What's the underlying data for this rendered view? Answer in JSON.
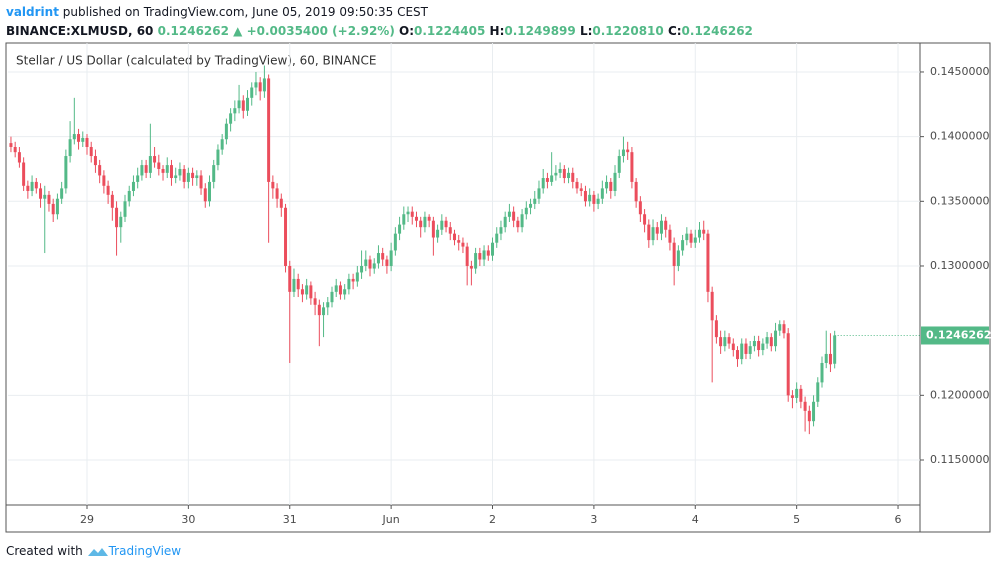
{
  "header": {
    "author": "valdrint",
    "published": "published on TradingView.com, June 05, 2019 09:50:35 CEST",
    "symbol": "BINANCE:XLMUSD, 60",
    "price": "0.1246262",
    "change": "▲ +0.0035400 (+2.92%)",
    "o_label": "O:",
    "o": "0.1224405",
    "h_label": "H:",
    "h": "0.1249899",
    "l_label": "L:",
    "l": "0.1220810",
    "c_label": "C:",
    "c": "0.1246262"
  },
  "chart_data": {
    "type": "candlestick",
    "title": "Stellar / US Dollar (calculated by TradingView), 60, BINANCE",
    "up_color": "#53b987",
    "down_color": "#eb4d5c",
    "grid": true,
    "ylim": [
      0.11152,
      0.14724
    ],
    "yticks": [
      {
        "value": 0.115,
        "label": "0.1150000"
      },
      {
        "value": 0.12,
        "label": "0.1200000"
      },
      {
        "value": 0.13,
        "label": "0.1300000"
      },
      {
        "value": 0.135,
        "label": "0.1350000"
      },
      {
        "value": 0.14,
        "label": "0.1400000"
      },
      {
        "value": 0.145,
        "label": "0.1450000"
      }
    ],
    "xlim": [
      -0.7,
      215.2
    ],
    "xticks": [
      {
        "value": 18,
        "label": "29"
      },
      {
        "value": 42,
        "label": "30"
      },
      {
        "value": 66,
        "label": "31"
      },
      {
        "value": 90,
        "label": "Jun"
      },
      {
        "value": 114,
        "label": "2"
      },
      {
        "value": 138,
        "label": "3"
      },
      {
        "value": 162,
        "label": "4"
      },
      {
        "value": 186,
        "label": "5"
      },
      {
        "value": 210,
        "label": "6"
      }
    ],
    "last_price_label": "0.1246262",
    "ohlc": [
      [
        0.1395,
        0.14,
        0.1388,
        0.1392
      ],
      [
        0.1392,
        0.1396,
        0.1384,
        0.1388
      ],
      [
        0.1388,
        0.1392,
        0.1376,
        0.138
      ],
      [
        0.138,
        0.1384,
        0.1358,
        0.1362
      ],
      [
        0.1362,
        0.1366,
        0.1352,
        0.1358
      ],
      [
        0.1358,
        0.137,
        0.1354,
        0.1365
      ],
      [
        0.1365,
        0.1368,
        0.1356,
        0.136
      ],
      [
        0.136,
        0.1364,
        0.1345,
        0.1352
      ],
      [
        0.1352,
        0.1362,
        0.131,
        0.1355
      ],
      [
        0.1355,
        0.1358,
        0.1342,
        0.1348
      ],
      [
        0.1348,
        0.1352,
        0.1334,
        0.134
      ],
      [
        0.134,
        0.1356,
        0.1336,
        0.1352
      ],
      [
        0.1352,
        0.1365,
        0.1348,
        0.136
      ],
      [
        0.136,
        0.139,
        0.1356,
        0.1385
      ],
      [
        0.1385,
        0.1412,
        0.138,
        0.1398
      ],
      [
        0.1398,
        0.143,
        0.1394,
        0.1402
      ],
      [
        0.1402,
        0.1406,
        0.139,
        0.1396
      ],
      [
        0.1396,
        0.1404,
        0.1392,
        0.1399
      ],
      [
        0.1399,
        0.1402,
        0.1386,
        0.1392
      ],
      [
        0.1392,
        0.1396,
        0.138,
        0.1385
      ],
      [
        0.1385,
        0.139,
        0.1372,
        0.1378
      ],
      [
        0.1378,
        0.1382,
        0.1364,
        0.137
      ],
      [
        0.137,
        0.1374,
        0.1356,
        0.1362
      ],
      [
        0.1362,
        0.1366,
        0.1348,
        0.1355
      ],
      [
        0.1355,
        0.1358,
        0.1335,
        0.1345
      ],
      [
        0.1345,
        0.135,
        0.1308,
        0.133
      ],
      [
        0.133,
        0.1342,
        0.1318,
        0.1338
      ],
      [
        0.1338,
        0.1355,
        0.1334,
        0.135
      ],
      [
        0.135,
        0.1362,
        0.1346,
        0.1358
      ],
      [
        0.1358,
        0.137,
        0.1354,
        0.1365
      ],
      [
        0.1365,
        0.1376,
        0.136,
        0.137
      ],
      [
        0.137,
        0.1382,
        0.1366,
        0.1378
      ],
      [
        0.1378,
        0.1382,
        0.1368,
        0.1372
      ],
      [
        0.1372,
        0.141,
        0.1368,
        0.1385
      ],
      [
        0.1385,
        0.1392,
        0.1376,
        0.138
      ],
      [
        0.138,
        0.1386,
        0.137,
        0.1375
      ],
      [
        0.1375,
        0.1378,
        0.1366,
        0.1372
      ],
      [
        0.1372,
        0.1384,
        0.1368,
        0.1378
      ],
      [
        0.1378,
        0.1382,
        0.1362,
        0.1368
      ],
      [
        0.1368,
        0.1376,
        0.1364,
        0.137
      ],
      [
        0.137,
        0.138,
        0.1366,
        0.1375
      ],
      [
        0.1375,
        0.1378,
        0.136,
        0.1365
      ],
      [
        0.1365,
        0.1376,
        0.136,
        0.1372
      ],
      [
        0.1372,
        0.1376,
        0.1362,
        0.1368
      ],
      [
        0.1368,
        0.1374,
        0.1362,
        0.137
      ],
      [
        0.137,
        0.1374,
        0.1355,
        0.136
      ],
      [
        0.136,
        0.1364,
        0.1345,
        0.135
      ],
      [
        0.135,
        0.137,
        0.1346,
        0.1365
      ],
      [
        0.1365,
        0.1382,
        0.136,
        0.1378
      ],
      [
        0.1378,
        0.1394,
        0.1374,
        0.139
      ],
      [
        0.139,
        0.1402,
        0.1386,
        0.1398
      ],
      [
        0.1398,
        0.1414,
        0.1394,
        0.141
      ],
      [
        0.141,
        0.1422,
        0.1404,
        0.1418
      ],
      [
        0.1418,
        0.1428,
        0.1412,
        0.1422
      ],
      [
        0.1422,
        0.144,
        0.1418,
        0.1428
      ],
      [
        0.1428,
        0.1432,
        0.1414,
        0.142
      ],
      [
        0.142,
        0.1436,
        0.1416,
        0.143
      ],
      [
        0.143,
        0.1442,
        0.1424,
        0.1438
      ],
      [
        0.1438,
        0.145,
        0.1432,
        0.1442
      ],
      [
        0.1442,
        0.1446,
        0.1428,
        0.1435
      ],
      [
        0.1435,
        0.1455,
        0.143,
        0.1445
      ],
      [
        0.1445,
        0.1448,
        0.1318,
        0.1365
      ],
      [
        0.1365,
        0.137,
        0.1352,
        0.136
      ],
      [
        0.136,
        0.1364,
        0.1345,
        0.1352
      ],
      [
        0.1352,
        0.1356,
        0.1338,
        0.1345
      ],
      [
        0.1345,
        0.1348,
        0.1295,
        0.13
      ],
      [
        0.13,
        0.1304,
        0.1225,
        0.128
      ],
      [
        0.128,
        0.1298,
        0.1276,
        0.129
      ],
      [
        0.129,
        0.1294,
        0.1276,
        0.1282
      ],
      [
        0.1282,
        0.1286,
        0.1272,
        0.1278
      ],
      [
        0.1278,
        0.129,
        0.1274,
        0.1285
      ],
      [
        0.1285,
        0.1288,
        0.127,
        0.1275
      ],
      [
        0.1275,
        0.128,
        0.1262,
        0.127
      ],
      [
        0.127,
        0.1274,
        0.1238,
        0.1262
      ],
      [
        0.1262,
        0.1272,
        0.1245,
        0.1268
      ],
      [
        0.1268,
        0.1276,
        0.1262,
        0.1272
      ],
      [
        0.1272,
        0.1284,
        0.1268,
        0.128
      ],
      [
        0.128,
        0.129,
        0.1276,
        0.1285
      ],
      [
        0.1285,
        0.1288,
        0.1274,
        0.1278
      ],
      [
        0.1278,
        0.1286,
        0.1274,
        0.1282
      ],
      [
        0.1282,
        0.1294,
        0.1278,
        0.129
      ],
      [
        0.129,
        0.1294,
        0.1282,
        0.1288
      ],
      [
        0.1288,
        0.13,
        0.1284,
        0.1295
      ],
      [
        0.1295,
        0.1312,
        0.129,
        0.13
      ],
      [
        0.13,
        0.1312,
        0.1296,
        0.1305
      ],
      [
        0.1305,
        0.1308,
        0.1292,
        0.1298
      ],
      [
        0.1298,
        0.1306,
        0.1294,
        0.1302
      ],
      [
        0.1302,
        0.1316,
        0.1298,
        0.131
      ],
      [
        0.131,
        0.1314,
        0.13,
        0.1305
      ],
      [
        0.1305,
        0.1308,
        0.1294,
        0.13
      ],
      [
        0.13,
        0.1318,
        0.1296,
        0.1312
      ],
      [
        0.1312,
        0.133,
        0.1308,
        0.1325
      ],
      [
        0.1325,
        0.1338,
        0.132,
        0.1332
      ],
      [
        0.1332,
        0.1346,
        0.1328,
        0.134
      ],
      [
        0.134,
        0.1346,
        0.1334,
        0.1342
      ],
      [
        0.1342,
        0.1346,
        0.1332,
        0.1338
      ],
      [
        0.1338,
        0.1342,
        0.133,
        0.1335
      ],
      [
        0.1335,
        0.1338,
        0.1322,
        0.133
      ],
      [
        0.133,
        0.1342,
        0.1326,
        0.1338
      ],
      [
        0.1338,
        0.134,
        0.133,
        0.1335
      ],
      [
        0.1335,
        0.1338,
        0.1308,
        0.1322
      ],
      [
        0.1322,
        0.1332,
        0.1318,
        0.1328
      ],
      [
        0.1328,
        0.134,
        0.1324,
        0.1335
      ],
      [
        0.1335,
        0.1338,
        0.1326,
        0.133
      ],
      [
        0.133,
        0.1334,
        0.132,
        0.1325
      ],
      [
        0.1325,
        0.1328,
        0.1316,
        0.132
      ],
      [
        0.132,
        0.1324,
        0.1312,
        0.1318
      ],
      [
        0.1318,
        0.1322,
        0.131,
        0.1315
      ],
      [
        0.1315,
        0.1318,
        0.1285,
        0.13
      ],
      [
        0.13,
        0.1304,
        0.1285,
        0.1298
      ],
      [
        0.1298,
        0.1314,
        0.1294,
        0.131
      ],
      [
        0.131,
        0.1314,
        0.13,
        0.1305
      ],
      [
        0.1305,
        0.1316,
        0.13,
        0.1312
      ],
      [
        0.1312,
        0.1316,
        0.1304,
        0.1308
      ],
      [
        0.1308,
        0.1322,
        0.1304,
        0.1318
      ],
      [
        0.1318,
        0.133,
        0.1314,
        0.1325
      ],
      [
        0.1325,
        0.1335,
        0.132,
        0.133
      ],
      [
        0.133,
        0.1342,
        0.1326,
        0.1338
      ],
      [
        0.1338,
        0.1348,
        0.1334,
        0.1342
      ],
      [
        0.1342,
        0.1346,
        0.133,
        0.1335
      ],
      [
        0.1335,
        0.1338,
        0.1326,
        0.133
      ],
      [
        0.133,
        0.1344,
        0.1326,
        0.134
      ],
      [
        0.134,
        0.135,
        0.1336,
        0.1345
      ],
      [
        0.1345,
        0.1352,
        0.134,
        0.1348
      ],
      [
        0.1348,
        0.1358,
        0.1344,
        0.1352
      ],
      [
        0.1352,
        0.1366,
        0.1348,
        0.136
      ],
      [
        0.136,
        0.1375,
        0.1356,
        0.1368
      ],
      [
        0.1368,
        0.1372,
        0.136,
        0.1365
      ],
      [
        0.1365,
        0.1388,
        0.1362,
        0.137
      ],
      [
        0.137,
        0.1378,
        0.1366,
        0.1372
      ],
      [
        0.1372,
        0.138,
        0.1368,
        0.1375
      ],
      [
        0.1375,
        0.1378,
        0.1364,
        0.1368
      ],
      [
        0.1368,
        0.1376,
        0.1364,
        0.1372
      ],
      [
        0.1372,
        0.1376,
        0.136,
        0.1365
      ],
      [
        0.1365,
        0.1368,
        0.1356,
        0.136
      ],
      [
        0.136,
        0.1364,
        0.1354,
        0.1358
      ],
      [
        0.1358,
        0.1362,
        0.1346,
        0.135
      ],
      [
        0.135,
        0.136,
        0.1346,
        0.1355
      ],
      [
        0.1355,
        0.1358,
        0.1342,
        0.1348
      ],
      [
        0.1348,
        0.1356,
        0.1344,
        0.1352
      ],
      [
        0.1352,
        0.1366,
        0.1348,
        0.136
      ],
      [
        0.136,
        0.137,
        0.1356,
        0.1365
      ],
      [
        0.1365,
        0.1368,
        0.1352,
        0.1358
      ],
      [
        0.1358,
        0.1378,
        0.1354,
        0.1372
      ],
      [
        0.1372,
        0.139,
        0.1368,
        0.1385
      ],
      [
        0.1385,
        0.14,
        0.138,
        0.139
      ],
      [
        0.139,
        0.1396,
        0.1382,
        0.1388
      ],
      [
        0.1388,
        0.1392,
        0.136,
        0.1365
      ],
      [
        0.1365,
        0.1368,
        0.1345,
        0.135
      ],
      [
        0.135,
        0.1354,
        0.1334,
        0.134
      ],
      [
        0.134,
        0.1344,
        0.1326,
        0.1332
      ],
      [
        0.1332,
        0.1336,
        0.1314,
        0.132
      ],
      [
        0.132,
        0.1336,
        0.1316,
        0.133
      ],
      [
        0.133,
        0.1334,
        0.132,
        0.1325
      ],
      [
        0.1325,
        0.134,
        0.132,
        0.1335
      ],
      [
        0.1335,
        0.1338,
        0.1322,
        0.1328
      ],
      [
        0.1328,
        0.1332,
        0.1312,
        0.1318
      ],
      [
        0.1318,
        0.1322,
        0.1285,
        0.13
      ],
      [
        0.13,
        0.1316,
        0.1296,
        0.1312
      ],
      [
        0.1312,
        0.1324,
        0.1308,
        0.132
      ],
      [
        0.132,
        0.133,
        0.1316,
        0.1325
      ],
      [
        0.1325,
        0.1328,
        0.1314,
        0.1318
      ],
      [
        0.1318,
        0.1328,
        0.1314,
        0.1322
      ],
      [
        0.1322,
        0.1334,
        0.1318,
        0.1328
      ],
      [
        0.1328,
        0.1335,
        0.132,
        0.1325
      ],
      [
        0.1325,
        0.1328,
        0.1272,
        0.128
      ],
      [
        0.128,
        0.1284,
        0.121,
        0.1258
      ],
      [
        0.1258,
        0.1262,
        0.124,
        0.1245
      ],
      [
        0.1245,
        0.125,
        0.1232,
        0.1238
      ],
      [
        0.1238,
        0.125,
        0.1234,
        0.1245
      ],
      [
        0.1245,
        0.1248,
        0.1236,
        0.124
      ],
      [
        0.124,
        0.1244,
        0.123,
        0.1235
      ],
      [
        0.1235,
        0.1238,
        0.1222,
        0.1228
      ],
      [
        0.1228,
        0.1244,
        0.1224,
        0.124
      ],
      [
        0.124,
        0.1244,
        0.1228,
        0.1232
      ],
      [
        0.1232,
        0.1242,
        0.1228,
        0.1238
      ],
      [
        0.1238,
        0.1246,
        0.1234,
        0.1242
      ],
      [
        0.1242,
        0.1246,
        0.123,
        0.1235
      ],
      [
        0.1235,
        0.1244,
        0.1231,
        0.124
      ],
      [
        0.124,
        0.1249,
        0.1236,
        0.1245
      ],
      [
        0.1245,
        0.1248,
        0.1234,
        0.1238
      ],
      [
        0.1238,
        0.1256,
        0.1234,
        0.125
      ],
      [
        0.125,
        0.1258,
        0.1246,
        0.1255
      ],
      [
        0.1255,
        0.1258,
        0.1244,
        0.1248
      ],
      [
        0.1248,
        0.1252,
        0.1195,
        0.12
      ],
      [
        0.12,
        0.1204,
        0.119,
        0.1198
      ],
      [
        0.1198,
        0.121,
        0.1194,
        0.1205
      ],
      [
        0.1205,
        0.1208,
        0.119,
        0.1195
      ],
      [
        0.1195,
        0.1199,
        0.1172,
        0.1188
      ],
      [
        0.1188,
        0.1192,
        0.117,
        0.118
      ],
      [
        0.118,
        0.12,
        0.1176,
        0.1195
      ],
      [
        0.1195,
        0.1214,
        0.1191,
        0.121
      ],
      [
        0.121,
        0.123,
        0.1206,
        0.1225
      ],
      [
        0.1225,
        0.125,
        0.1221,
        0.1232
      ],
      [
        0.1232,
        0.1248,
        0.1218,
        0.1224
      ],
      [
        0.1224405,
        0.1249899,
        0.122081,
        0.1246262
      ]
    ]
  },
  "footer": {
    "created": "Created with",
    "brand": "TradingView"
  }
}
